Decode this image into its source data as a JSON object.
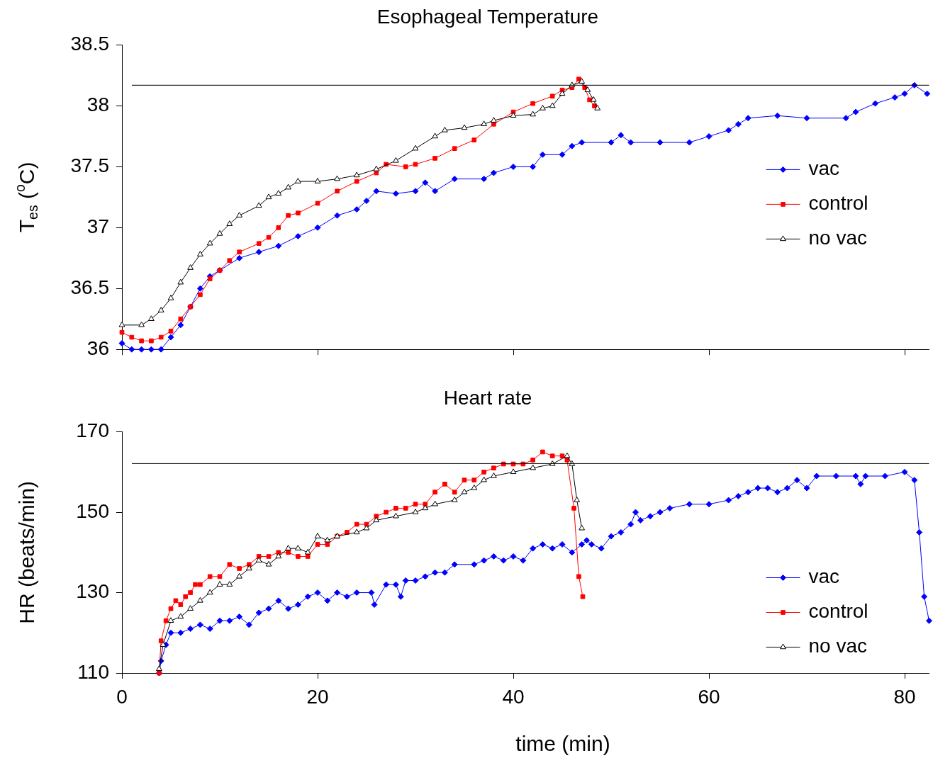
{
  "chart_data": [
    {
      "type": "line",
      "title": "Esophageal Temperature",
      "ylabel": "T$_{es}$ ($^{o}$C)",
      "xlim": [
        0,
        82.5
      ],
      "xticks": [
        0,
        20,
        40,
        60,
        80
      ],
      "ylim": [
        36,
        38.5
      ],
      "yticks": [
        36,
        36.5,
        37,
        37.5,
        38,
        38.5
      ],
      "tick_labels": "y",
      "legend": "right",
      "grid": false,
      "ref_lines": [
        {
          "axis": "y",
          "value": 38.17
        }
      ],
      "series": [
        {
          "name": "vac",
          "color": "#0000ff",
          "marker": "diamond",
          "x": [
            0,
            1,
            2,
            3,
            4,
            5,
            6,
            7,
            8,
            9,
            10,
            12,
            14,
            16,
            18,
            20,
            22,
            24,
            25,
            26,
            28,
            30,
            31,
            32,
            34,
            37,
            38,
            40,
            42,
            43,
            45,
            46,
            47,
            50,
            51,
            52,
            55,
            58,
            60,
            62,
            63,
            64,
            67,
            70,
            74,
            75,
            77,
            79,
            80,
            81,
            82.3
          ],
          "values": [
            36.05,
            36.0,
            36.0,
            36.0,
            36.0,
            36.1,
            36.2,
            36.35,
            36.5,
            36.6,
            36.65,
            36.75,
            36.8,
            36.85,
            36.93,
            37.0,
            37.1,
            37.15,
            37.22,
            37.3,
            37.28,
            37.3,
            37.37,
            37.3,
            37.4,
            37.4,
            37.45,
            37.5,
            37.5,
            37.6,
            37.6,
            37.67,
            37.7,
            37.7,
            37.76,
            37.7,
            37.7,
            37.7,
            37.75,
            37.8,
            37.85,
            37.9,
            37.92,
            37.9,
            37.9,
            37.95,
            38.02,
            38.07,
            38.1,
            38.17,
            38.1
          ]
        },
        {
          "name": "control",
          "color": "#ff0000",
          "marker": "square",
          "x": [
            0,
            1,
            2,
            3,
            4,
            5,
            6,
            7,
            8,
            9,
            10,
            11,
            12,
            14,
            15,
            16,
            17,
            18,
            20,
            22,
            24,
            26,
            27,
            29,
            30,
            32,
            34,
            36,
            38,
            40,
            42,
            44,
            45,
            46,
            46.7,
            47.3,
            47.8,
            48.3
          ],
          "values": [
            36.14,
            36.1,
            36.07,
            36.07,
            36.1,
            36.15,
            36.25,
            36.35,
            36.45,
            36.58,
            36.65,
            36.73,
            36.8,
            36.87,
            36.92,
            37.0,
            37.1,
            37.12,
            37.2,
            37.3,
            37.38,
            37.45,
            37.52,
            37.5,
            37.52,
            37.57,
            37.65,
            37.72,
            37.85,
            37.95,
            38.02,
            38.08,
            38.13,
            38.15,
            38.22,
            38.15,
            38.05,
            38.0
          ]
        },
        {
          "name": "no vac",
          "color": "#000000",
          "marker": "triangle",
          "x": [
            0,
            2,
            3,
            4,
            5,
            6,
            7,
            8,
            9,
            10,
            11,
            12,
            14,
            15,
            16,
            17,
            18,
            20,
            22,
            24,
            26,
            28,
            30,
            32,
            33,
            35,
            37,
            38,
            40,
            42,
            43,
            44,
            45,
            46,
            47,
            47.6,
            48.2,
            48.6
          ],
          "values": [
            36.2,
            36.2,
            36.25,
            36.32,
            36.42,
            36.55,
            36.67,
            36.78,
            36.87,
            36.95,
            37.03,
            37.1,
            37.18,
            37.25,
            37.28,
            37.33,
            37.38,
            37.38,
            37.4,
            37.43,
            37.48,
            37.55,
            37.65,
            37.75,
            37.8,
            37.82,
            37.85,
            37.88,
            37.92,
            37.93,
            37.98,
            38.0,
            38.1,
            38.17,
            38.2,
            38.13,
            38.05,
            37.98
          ]
        }
      ]
    },
    {
      "type": "line",
      "title": "Heart rate",
      "xlabel": "time (min)",
      "ylabel": "HR (beats/min)",
      "xlim": [
        0,
        82.5
      ],
      "xticks": [
        0,
        20,
        40,
        60,
        80
      ],
      "ylim": [
        110,
        170
      ],
      "yticks": [
        110,
        130,
        150,
        170
      ],
      "legend": "bottom right",
      "grid": false,
      "ref_lines": [
        {
          "axis": "y",
          "value": 162.1
        }
      ],
      "series": [
        {
          "name": "vac",
          "color": "#0000ff",
          "marker": "diamond",
          "x": [
            3.8,
            4,
            4.5,
            5,
            6,
            7,
            8,
            9,
            10,
            11,
            12,
            13,
            14,
            15,
            16,
            17,
            18,
            19,
            20,
            21,
            22,
            23,
            24,
            25.5,
            25.8,
            27,
            28,
            28.5,
            29,
            30,
            31,
            32,
            33,
            34,
            36,
            37,
            38,
            39,
            40,
            41,
            42,
            43,
            44,
            45,
            46,
            47,
            47.5,
            48,
            49,
            50,
            51,
            52,
            52.5,
            53,
            54,
            55,
            56,
            58,
            60,
            62,
            63,
            64,
            65,
            66,
            67,
            68,
            69,
            70,
            71,
            73,
            75,
            75.5,
            76,
            78,
            80,
            81,
            81.5,
            82,
            82.5
          ],
          "values": [
            110,
            113,
            117,
            120,
            120,
            121,
            122,
            121,
            123,
            123,
            124,
            122,
            125,
            126,
            128,
            126,
            127,
            129,
            130,
            128,
            130,
            129,
            130,
            130,
            127,
            132,
            132,
            129,
            133,
            133,
            134,
            135,
            135,
            137,
            137,
            138,
            139,
            138,
            139,
            138,
            141,
            142,
            141,
            142,
            140,
            142,
            143,
            142,
            141,
            144,
            145,
            147,
            150,
            148,
            149,
            150,
            151,
            152,
            152,
            153,
            154,
            155,
            156,
            156,
            155,
            156,
            158,
            156,
            159,
            159,
            159,
            157,
            159,
            159,
            160,
            158,
            145,
            129,
            123
          ]
        },
        {
          "name": "control",
          "color": "#ff0000",
          "marker": "square",
          "x": [
            3.8,
            4,
            4.5,
            5,
            5.5,
            6,
            6.5,
            7,
            7.5,
            8,
            9,
            10,
            11,
            12,
            13,
            14,
            15,
            16,
            17,
            18,
            19,
            20,
            21,
            22,
            23,
            24,
            25,
            26,
            27,
            28,
            29,
            30,
            31,
            32,
            33,
            34,
            35,
            36,
            37,
            38,
            39,
            40,
            41,
            42,
            43,
            44,
            45,
            45.5,
            46.2,
            46.7,
            47.1
          ],
          "values": [
            110,
            118,
            123,
            126,
            128,
            127,
            129,
            130,
            132,
            132,
            134,
            134,
            137,
            136,
            137,
            139,
            139,
            140,
            140,
            139,
            139,
            142,
            142,
            144,
            145,
            147,
            147,
            149,
            150,
            151,
            151,
            152,
            152,
            155,
            157,
            155,
            158,
            158,
            160,
            161,
            162,
            162,
            162,
            163,
            165,
            164,
            164,
            163,
            151,
            134,
            129
          ]
        },
        {
          "name": "no vac",
          "color": "#000000",
          "marker": "triangle",
          "x": [
            3.8,
            4.2,
            5,
            6,
            7,
            8,
            9,
            10,
            11,
            12,
            13,
            14,
            15,
            16,
            17,
            18,
            19,
            20,
            21,
            22,
            24,
            25,
            26,
            28,
            30,
            31,
            32,
            34,
            35,
            36,
            37,
            38,
            40,
            42,
            44,
            45.5,
            46,
            46.5,
            47
          ],
          "values": [
            111,
            117,
            123,
            124,
            126,
            128,
            130,
            132,
            132,
            134,
            136,
            138,
            137,
            139,
            141,
            141,
            140,
            144,
            143,
            144,
            145,
            146,
            148,
            149,
            150,
            151,
            152,
            153,
            155,
            156,
            158,
            159,
            160,
            161,
            162,
            164,
            162,
            153,
            146
          ]
        }
      ]
    }
  ]
}
